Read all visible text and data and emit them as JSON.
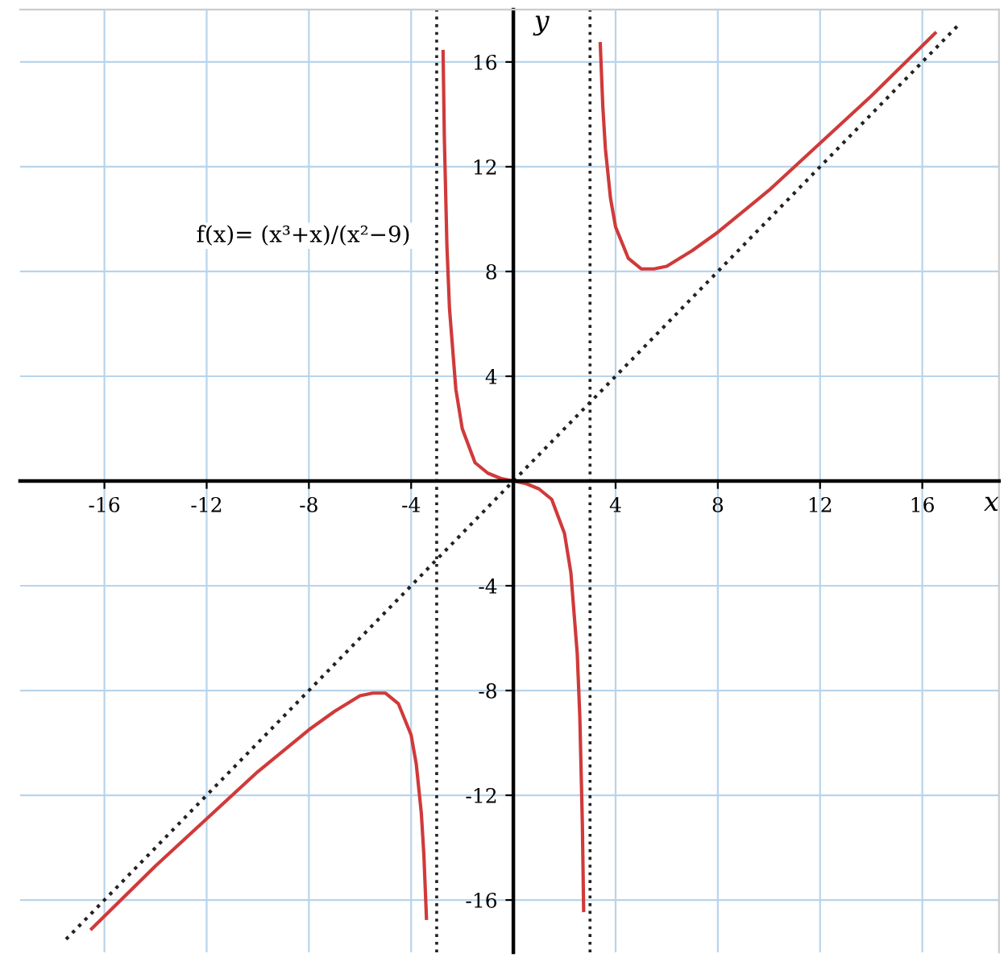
{
  "chart_data": {
    "type": "line",
    "xlabel": "x",
    "ylabel": "y",
    "annotations": [
      "f(x)= (x³+x)/(x²−9)"
    ],
    "series": [
      {
        "color": "#d03a3a",
        "line_style": "solid",
        "x": [
          -16.5,
          -14,
          -12,
          -10,
          -8,
          -7,
          -6,
          -5.5,
          -5,
          -4.5,
          -4,
          -3.8,
          -3.6,
          -3.5,
          -3.4
        ],
        "values": [
          -17.1,
          -14.7,
          -12.9,
          -11.1,
          -9.5,
          -8.8,
          -8.2,
          -8.1,
          -8.1,
          -8.5,
          -9.7,
          -10.8,
          -12.7,
          -14.3,
          -16.7
        ]
      },
      {
        "color": "#d03a3a",
        "line_style": "solid",
        "x": [
          -2.75,
          -2.7,
          -2.6,
          -2.5,
          -2.25,
          -2,
          -1.5,
          -1,
          -0.5,
          0,
          0.5,
          1,
          1.5,
          2,
          2.25,
          2.5,
          2.6,
          2.7,
          2.75
        ],
        "values": [
          16.4,
          13.1,
          9.0,
          6.6,
          3.5,
          2.0,
          0.7,
          0.3,
          0.1,
          0,
          -0.1,
          -0.3,
          -0.7,
          -2.0,
          -3.5,
          -6.6,
          -9.0,
          -13.1,
          -16.4
        ]
      },
      {
        "color": "#d03a3a",
        "line_style": "solid",
        "x": [
          3.4,
          3.5,
          3.6,
          3.8,
          4,
          4.5,
          5,
          5.5,
          6,
          7,
          8,
          10,
          12,
          14,
          16.5
        ],
        "values": [
          16.7,
          14.3,
          12.7,
          10.8,
          9.7,
          8.5,
          8.1,
          8.1,
          8.2,
          8.8,
          9.5,
          11.1,
          12.9,
          14.7,
          17.1
        ]
      },
      {
        "color": "#222222",
        "line_style": "dotted",
        "x": [
          -17.5,
          17.5
        ],
        "values": [
          -17.5,
          17.5
        ]
      }
    ],
    "ref_lines": [
      {
        "axis": "x",
        "value": -3,
        "color": "#222222",
        "line_style": "dotted"
      },
      {
        "axis": "x",
        "value": 3,
        "color": "#222222",
        "line_style": "dotted"
      }
    ],
    "xlim": [
      -19.3,
      19
    ],
    "ylim": [
      -18,
      18
    ],
    "xticks": [
      -16,
      -12,
      -8,
      -4,
      4,
      8,
      12,
      16
    ],
    "yticks": [
      -16,
      -12,
      -8,
      -4,
      4,
      8,
      12,
      16
    ],
    "grid": true
  }
}
